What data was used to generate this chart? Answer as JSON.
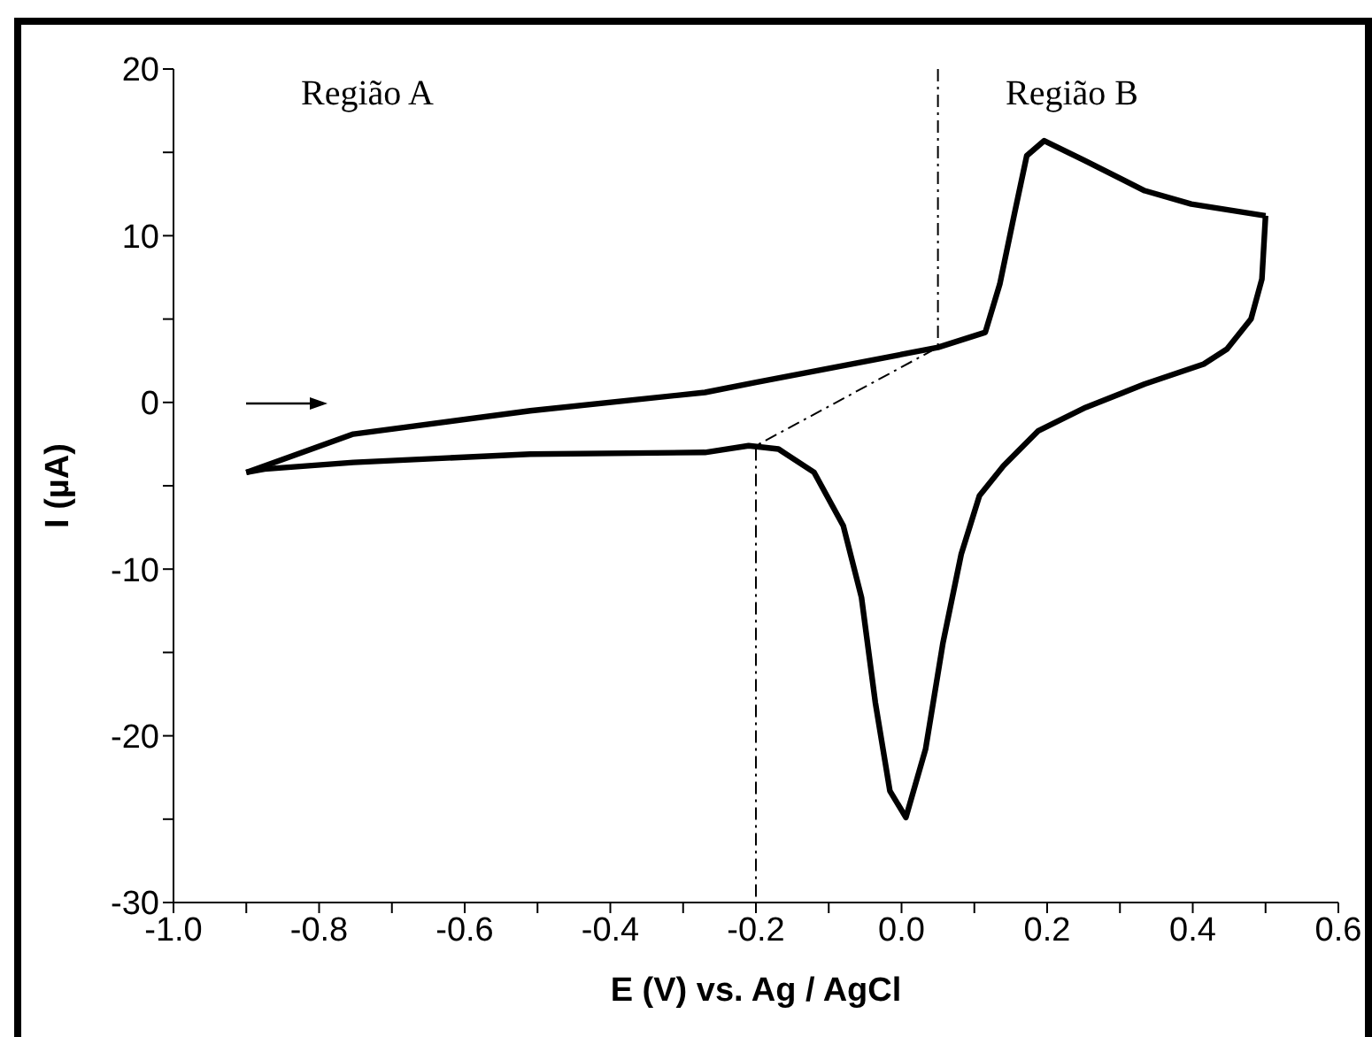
{
  "chart_data": {
    "type": "line",
    "xlabel": "E (V) vs. Ag / AgCl",
    "ylabel": "I (µA)",
    "annotations": [
      "Região A",
      "Região B"
    ],
    "xlim": [
      -1.0,
      0.6
    ],
    "ylim": [
      -30,
      20
    ],
    "xticks": [
      {
        "value": -1.0,
        "label": "-1.0"
      },
      {
        "value": -0.9,
        "label": null
      },
      -0.8,
      {
        "value": -0.7,
        "label": null
      },
      -0.6,
      {
        "value": -0.5,
        "label": null
      },
      -0.4,
      {
        "value": -0.3,
        "label": null
      },
      -0.2,
      {
        "value": -0.1,
        "label": null
      },
      {
        "value": 0,
        "label": "0.0"
      },
      {
        "value": 0.1,
        "label": null
      },
      0.2,
      {
        "value": 0.3,
        "label": null
      },
      0.4,
      {
        "value": 0.5,
        "label": null
      },
      0.6
    ],
    "yticks": [
      -30,
      {
        "value": -25,
        "label": null
      },
      -20,
      {
        "value": -15,
        "label": null
      },
      -10,
      {
        "value": -5,
        "label": null
      },
      0,
      {
        "value": 5,
        "label": null
      },
      10,
      {
        "value": 15,
        "label": null
      },
      20
    ],
    "marker": "none",
    "series": [
      {
        "color": "#000000",
        "line_style": "dashed",
        "x": [
          0.05,
          0.05,
          -0.2,
          -0.2
        ],
        "values": [
          20,
          3.3,
          -2.6,
          -30
        ]
      },
      {
        "color": "#000000",
        "line_style": "solid",
        "x": [
          -0.9,
          -0.753,
          -0.51,
          -0.27,
          -0.2,
          0.05,
          0.115,
          0.135,
          0.155,
          0.172,
          0.196,
          0.252,
          0.334,
          0.398,
          0.5
        ],
        "values": [
          -4.2,
          -1.9,
          -0.5,
          0.6,
          1.2,
          3.3,
          4.2,
          7.1,
          11.3,
          14.8,
          15.7,
          14.5,
          12.7,
          11.9,
          11.2
        ]
      },
      {
        "color": "#000000",
        "line_style": "solid",
        "x": [
          0.5,
          0.495,
          0.48,
          0.447,
          0.415,
          0.334,
          0.253,
          0.188,
          0.14,
          0.107,
          0.082,
          0.057,
          0.033,
          0.006,
          -0.016,
          -0.036,
          -0.055,
          -0.08,
          -0.12,
          -0.169,
          -0.21,
          -0.27,
          -0.51,
          -0.753,
          -0.875,
          -0.9
        ],
        "values": [
          11.2,
          7.4,
          5.0,
          3.2,
          2.3,
          1.1,
          -0.3,
          -1.7,
          -3.8,
          -5.6,
          -9.1,
          -14.4,
          -20.8,
          -24.9,
          -23.3,
          -18.0,
          -11.7,
          -7.4,
          -4.2,
          -2.8,
          -2.6,
          -3.0,
          -3.1,
          -3.6,
          -4.0,
          -4.2
        ]
      }
    ]
  }
}
